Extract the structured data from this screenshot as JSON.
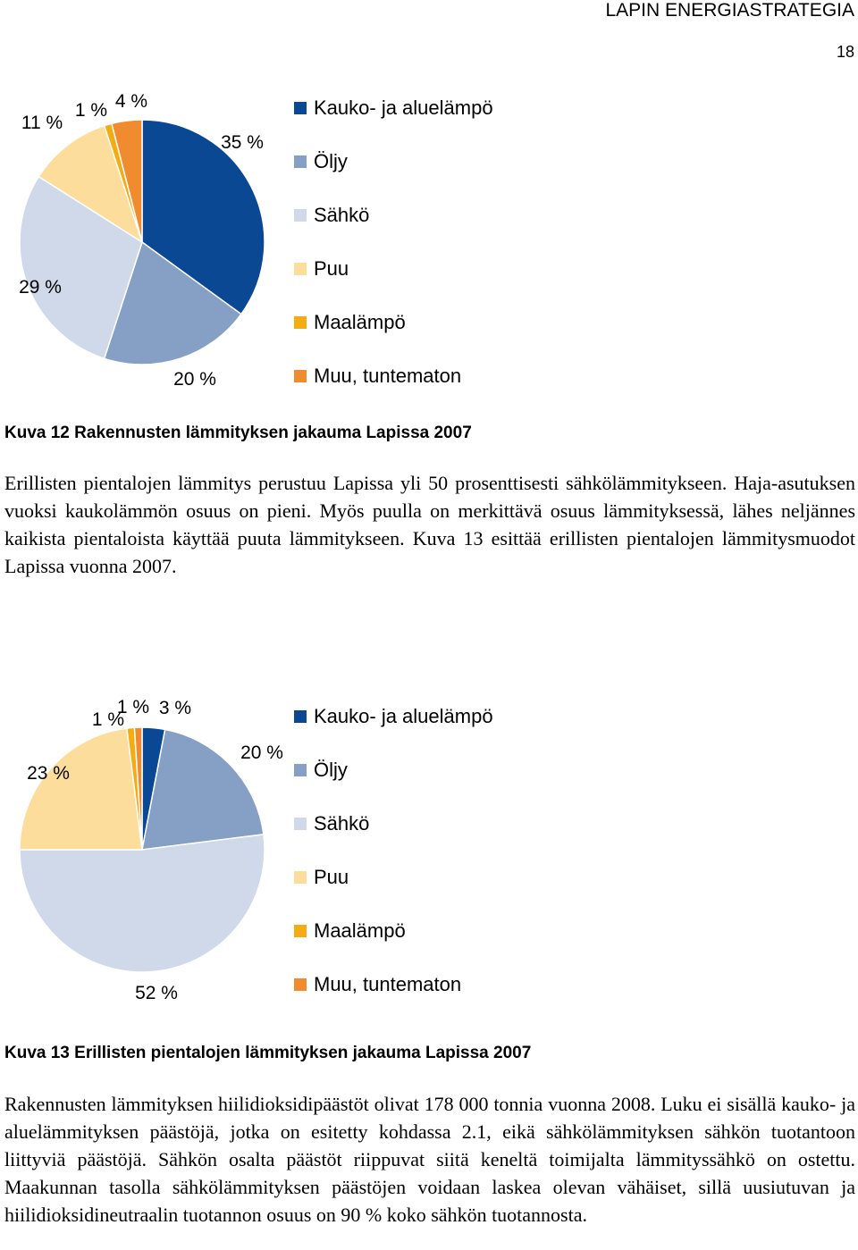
{
  "header": {
    "title": "LAPIN ENERGIASTRATEGIA",
    "page_number": "18"
  },
  "legend_labels": [
    "Kauko- ja aluelämpö",
    "Öljy",
    "Sähkö",
    "Puu",
    "Maalämpö",
    "Muu, tuntematon"
  ],
  "colors": [
    "#0b4894",
    "#86a0c5",
    "#cfd9e9",
    "#fddd9c",
    "#f5ab12",
    "#f08b30"
  ],
  "chart_data": [
    {
      "type": "pie",
      "categories": [
        "Kauko- ja aluelämpö",
        "Öljy",
        "Sähkö",
        "Puu",
        "Maalämpö",
        "Muu, tuntematon"
      ],
      "values": [
        35,
        20,
        29,
        11,
        1,
        4
      ],
      "data_labels": [
        "35 %",
        "20 %",
        "29 %",
        "11 %",
        "1 %",
        "4 %"
      ],
      "legend_position": "right"
    },
    {
      "type": "pie",
      "categories": [
        "Kauko- ja aluelämpö",
        "Öljy",
        "Sähkö",
        "Puu",
        "Maalämpö",
        "Muu, tuntematon"
      ],
      "values": [
        3,
        20,
        52,
        23,
        1,
        1
      ],
      "data_labels": [
        "3 %",
        "20 %",
        "52 %",
        "23 %",
        "1 %",
        "1 %"
      ],
      "legend_position": "right"
    }
  ],
  "captions": {
    "fig12": "Kuva 12 Rakennusten lämmityksen jakauma Lapissa 2007",
    "fig13": "Kuva 13 Erillisten pientalojen lämmityksen jakauma Lapissa 2007"
  },
  "paragraphs": {
    "p1": "Erillisten pientalojen lämmitys perustuu Lapissa yli 50 prosenttisesti sähkölämmitykseen. Haja-asutuksen vuoksi kaukolämmön osuus on pieni. Myös puulla on merkittävä osuus lämmityksessä, lähes neljännes kaikista pientaloista käyttää puuta lämmitykseen. Kuva 13 esittää erillisten pientalojen lämmitysmuodot Lapissa vuonna 2007.",
    "p2": "Rakennusten lämmityksen hiilidioksidipäästöt olivat 178 000 tonnia vuonna 2008. Luku ei sisällä kauko- ja aluelämmityksen päästöjä, jotka on esitetty kohdassa 2.1, eikä sähkölämmityksen sähkön tuotantoon liittyviä päästöjä. Sähkön osalta päästöt riippuvat siitä keneltä toimijalta lämmityssähkö on ostettu. Maakunnan tasolla sähkölämmityksen päästöjen voidaan laskea olevan vähäiset, sillä uusiutuvan ja hiilidioksidineutraalin tuotannon osuus on 90 % koko sähkön tuotannosta."
  }
}
